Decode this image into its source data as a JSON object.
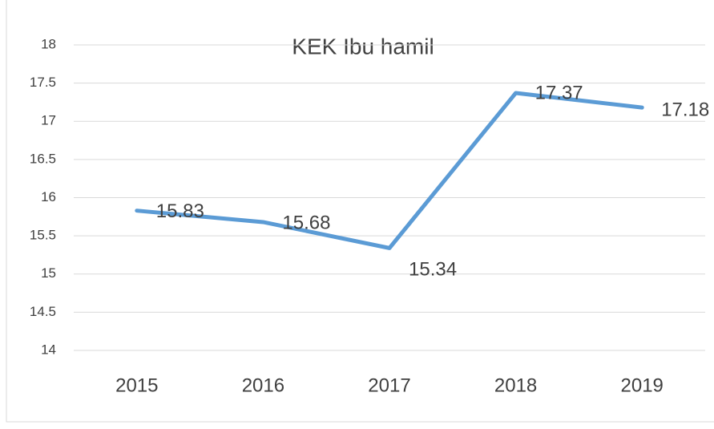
{
  "chart_data": {
    "type": "line",
    "title": "KEK Ibu hamil",
    "categories": [
      "2015",
      "2016",
      "2017",
      "2018",
      "2019"
    ],
    "values": [
      15.83,
      15.68,
      15.34,
      17.37,
      17.18
    ],
    "color": "#5b9bd5",
    "ylim": [
      14,
      18
    ],
    "yticks": [
      14,
      14.5,
      15,
      15.5,
      16,
      16.5,
      17,
      17.5,
      18
    ],
    "grid": true
  }
}
